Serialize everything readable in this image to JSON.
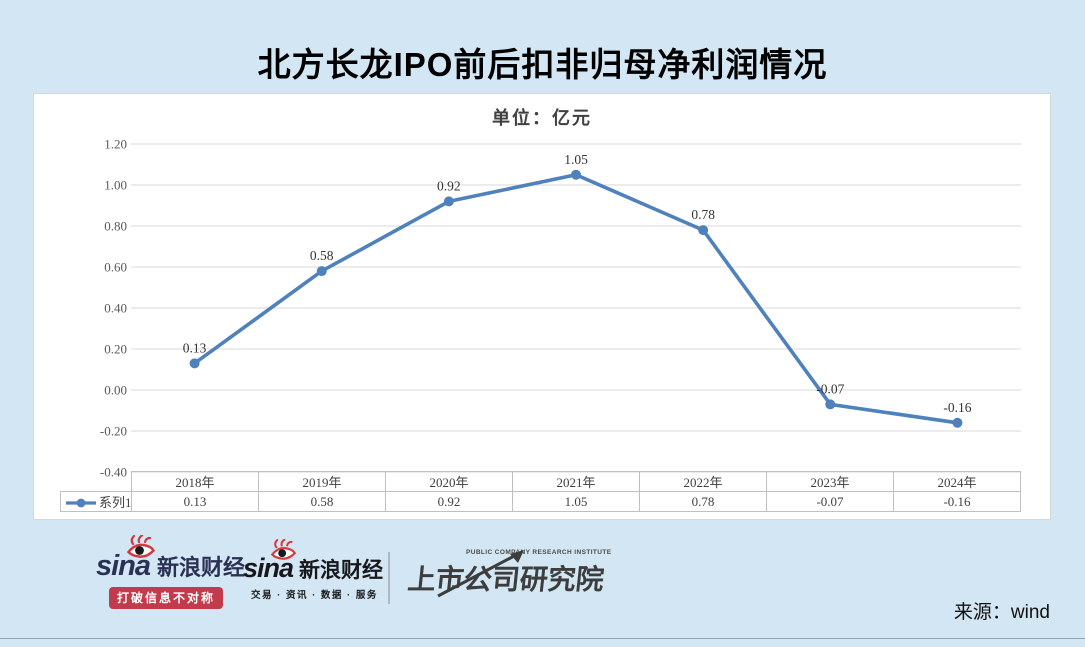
{
  "page": {
    "title": "北方长龙IPO前后扣非归母净利润情况",
    "source_label": "来源：wind",
    "background_color": "#d3e6f3"
  },
  "chart_data": {
    "type": "line",
    "title": "北方长龙IPO前后扣非归母净利润情况",
    "subtitle": "单位：亿元",
    "categories": [
      "2018年",
      "2019年",
      "2020年",
      "2021年",
      "2022年",
      "2023年",
      "2024年"
    ],
    "series": [
      {
        "name": "系列1",
        "values": [
          0.13,
          0.58,
          0.92,
          1.05,
          0.78,
          -0.07,
          -0.16
        ]
      }
    ],
    "data_labels": [
      "0.13",
      "0.58",
      "0.92",
      "1.05",
      "0.78",
      "-0.07",
      "-0.16"
    ],
    "ytick_labels": [
      "1.20",
      "1.00",
      "0.80",
      "0.60",
      "0.40",
      "0.20",
      "0.00",
      "-0.20",
      "-0.40"
    ],
    "ylim": [
      -0.4,
      1.2
    ],
    "ytick_step": 0.2,
    "grid": true,
    "legend_position": "bottom-left-table",
    "line_color": "#4f81bd",
    "gridline_color": "#d9d9d9",
    "label_color": "#333333",
    "axis_text_color": "#595959"
  },
  "logos": {
    "sina_finance_1": {
      "brand": "sina",
      "name": "新浪财经",
      "tagline": "打破信息不对称"
    },
    "sina_finance_2": {
      "brand": "sina",
      "name": "新浪财经",
      "tagline": "交易 · 资讯 · 数据 · 服务"
    },
    "research_institute": {
      "name": "上市公司研究院",
      "subtitle": "PUBLIC COMPANY RESEARCH INSTITUTE"
    }
  }
}
